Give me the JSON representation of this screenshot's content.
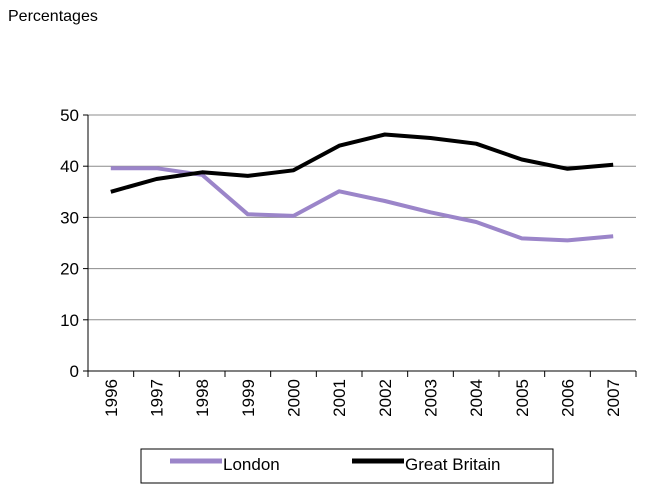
{
  "chart_data": {
    "type": "line",
    "ylabel": "Percentages",
    "xlabel": "",
    "categories": [
      "1996",
      "1997",
      "1998",
      "1999",
      "2000",
      "2001",
      "2002",
      "2003",
      "2004",
      "2005",
      "2006",
      "2007"
    ],
    "ylim": [
      0,
      50
    ],
    "yticks": [
      0,
      10,
      20,
      30,
      40,
      50
    ],
    "grid": true,
    "legend": "bottom",
    "series": [
      {
        "name": "London",
        "color": "#9b85c9",
        "values": [
          39.6,
          39.6,
          38.3,
          30.6,
          30.3,
          35.1,
          33.2,
          31.0,
          29.1,
          25.9,
          25.5,
          26.3
        ]
      },
      {
        "name": "Great Britain",
        "color": "#000000",
        "values": [
          35.0,
          37.5,
          38.8,
          38.1,
          39.2,
          44.0,
          46.2,
          45.5,
          44.4,
          41.3,
          39.5,
          40.3
        ]
      }
    ]
  }
}
